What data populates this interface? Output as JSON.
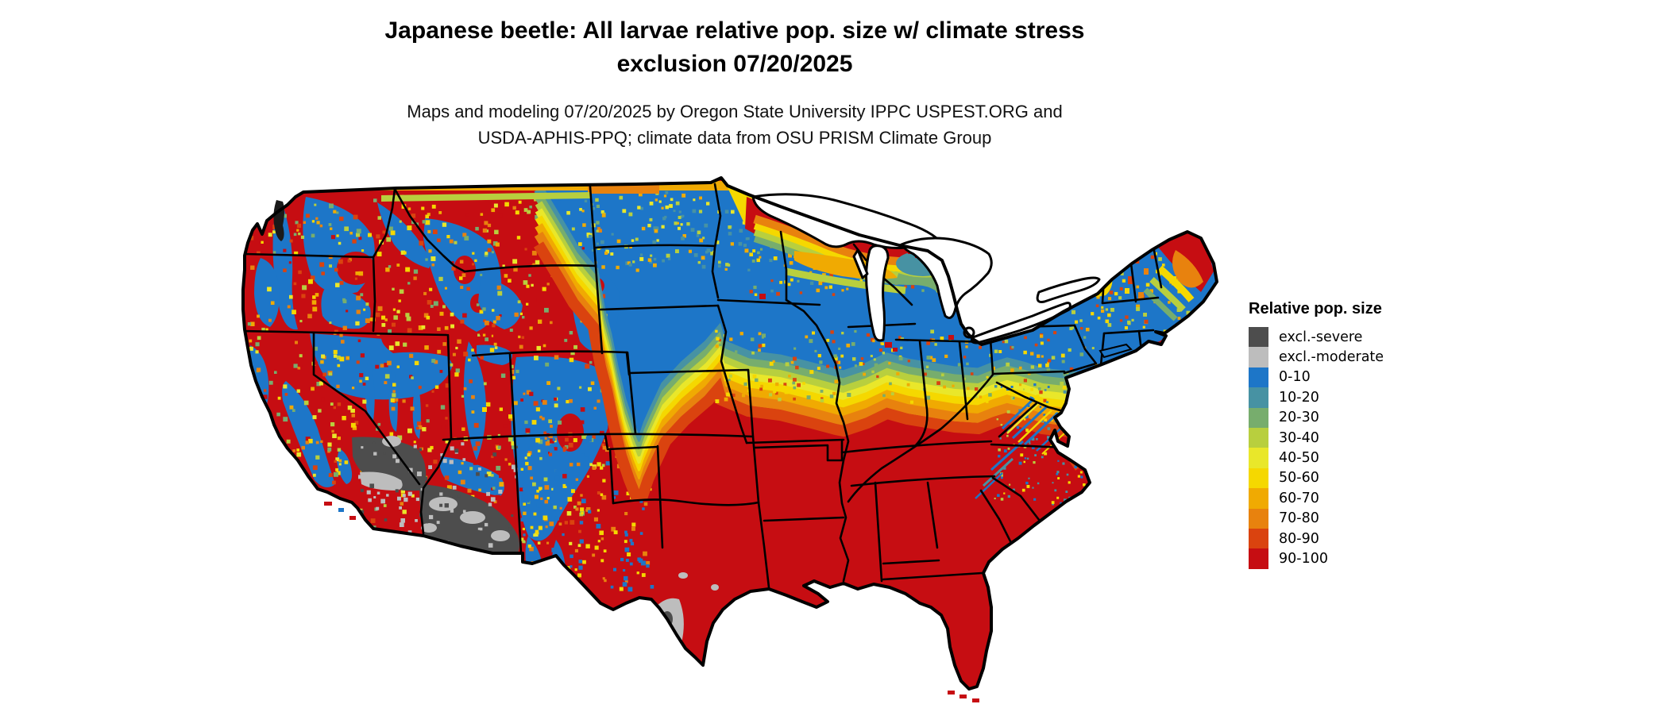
{
  "header": {
    "title_line1": "Japanese beetle: All larvae relative pop. size w/ climate stress",
    "title_line2": "exclusion 07/20/2025",
    "subtitle_line1": "Maps and modeling 07/20/2025 by Oregon State University IPPC USPEST.ORG and",
    "subtitle_line2": "USDA-APHIS-PPQ; climate data from OSU PRISM Climate Group"
  },
  "legend": {
    "title": "Relative pop. size",
    "items": [
      {
        "label": "excl.-severe",
        "color_key": "excl_severe"
      },
      {
        "label": "excl.-moderate",
        "color_key": "excl_moderate"
      },
      {
        "label": "0-10",
        "color_key": "b0_10"
      },
      {
        "label": "10-20",
        "color_key": "b10_20"
      },
      {
        "label": "20-30",
        "color_key": "b20_30"
      },
      {
        "label": "30-40",
        "color_key": "b30_40"
      },
      {
        "label": "40-50",
        "color_key": "b40_50"
      },
      {
        "label": "50-60",
        "color_key": "b50_60"
      },
      {
        "label": "60-70",
        "color_key": "b60_70"
      },
      {
        "label": "70-80",
        "color_key": "b70_80"
      },
      {
        "label": "80-90",
        "color_key": "b80_90"
      },
      {
        "label": "90-100",
        "color_key": "b90_100"
      }
    ]
  },
  "colors": {
    "excl_severe": "#4d4d4d",
    "excl_moderate": "#bdbdbd",
    "b0_10": "#1d76c8",
    "b10_20": "#4792a3",
    "b20_30": "#77ad6d",
    "b30_40": "#b8cf3e",
    "b40_50": "#e9e72a",
    "b50_60": "#f5d800",
    "b60_70": "#f0aa02",
    "b70_80": "#e8820e",
    "b80_90": "#da430f",
    "b90_100": "#c60d12",
    "border_black": "#000000",
    "lake_white": "#ffffff",
    "puget_dark": "#1a1a1a"
  },
  "map_data": {
    "type": "choropleth-raster",
    "region": "Contiguous United States",
    "classes": [
      "excl.-severe",
      "excl.-moderate",
      "0-10",
      "10-20",
      "20-30",
      "30-40",
      "40-50",
      "50-60",
      "60-70",
      "70-80",
      "80-90",
      "90-100"
    ],
    "zones": [
      {
        "area": "Southeastern and south-central US (Texas to Florida, north to Kansas/Missouri/Ohio Valley and mid-Atlantic coast)",
        "dominant_class": "90-100"
      },
      {
        "area": "Northern plains, upper Midwest, Great Lakes states, Pennsylvania and interior Northeast/New England",
        "dominant_class": "0-10"
      },
      {
        "area": "West-to-east transition band across Nebraska, Iowa, Illinois, Indiana, Ohio and southern Pennsylvania/New Jersey",
        "dominant_class": "10-90 gradient"
      },
      {
        "area": "Western mountain mosaic (Cascades, Sierra Nevada, northern Rockies, Colorado Rockies) on hot-valley matrix",
        "dominant_class": "0-10 patches within 90-100"
      },
      {
        "area": "Southern Arizona, Mojave / southeastern California deserts",
        "dominant_class": "excl.-severe with excl.-moderate patches"
      },
      {
        "area": "Big Bend region of southwestern Texas",
        "dominant_class": "excl.-moderate"
      },
      {
        "area": "Lake Superior south shore, northern Wisconsin / upper Michigan and northern Maine",
        "dominant_class": "50-100 band"
      }
    ],
    "lakes_shown_as": "white with black shoreline",
    "state_borders": "black"
  }
}
